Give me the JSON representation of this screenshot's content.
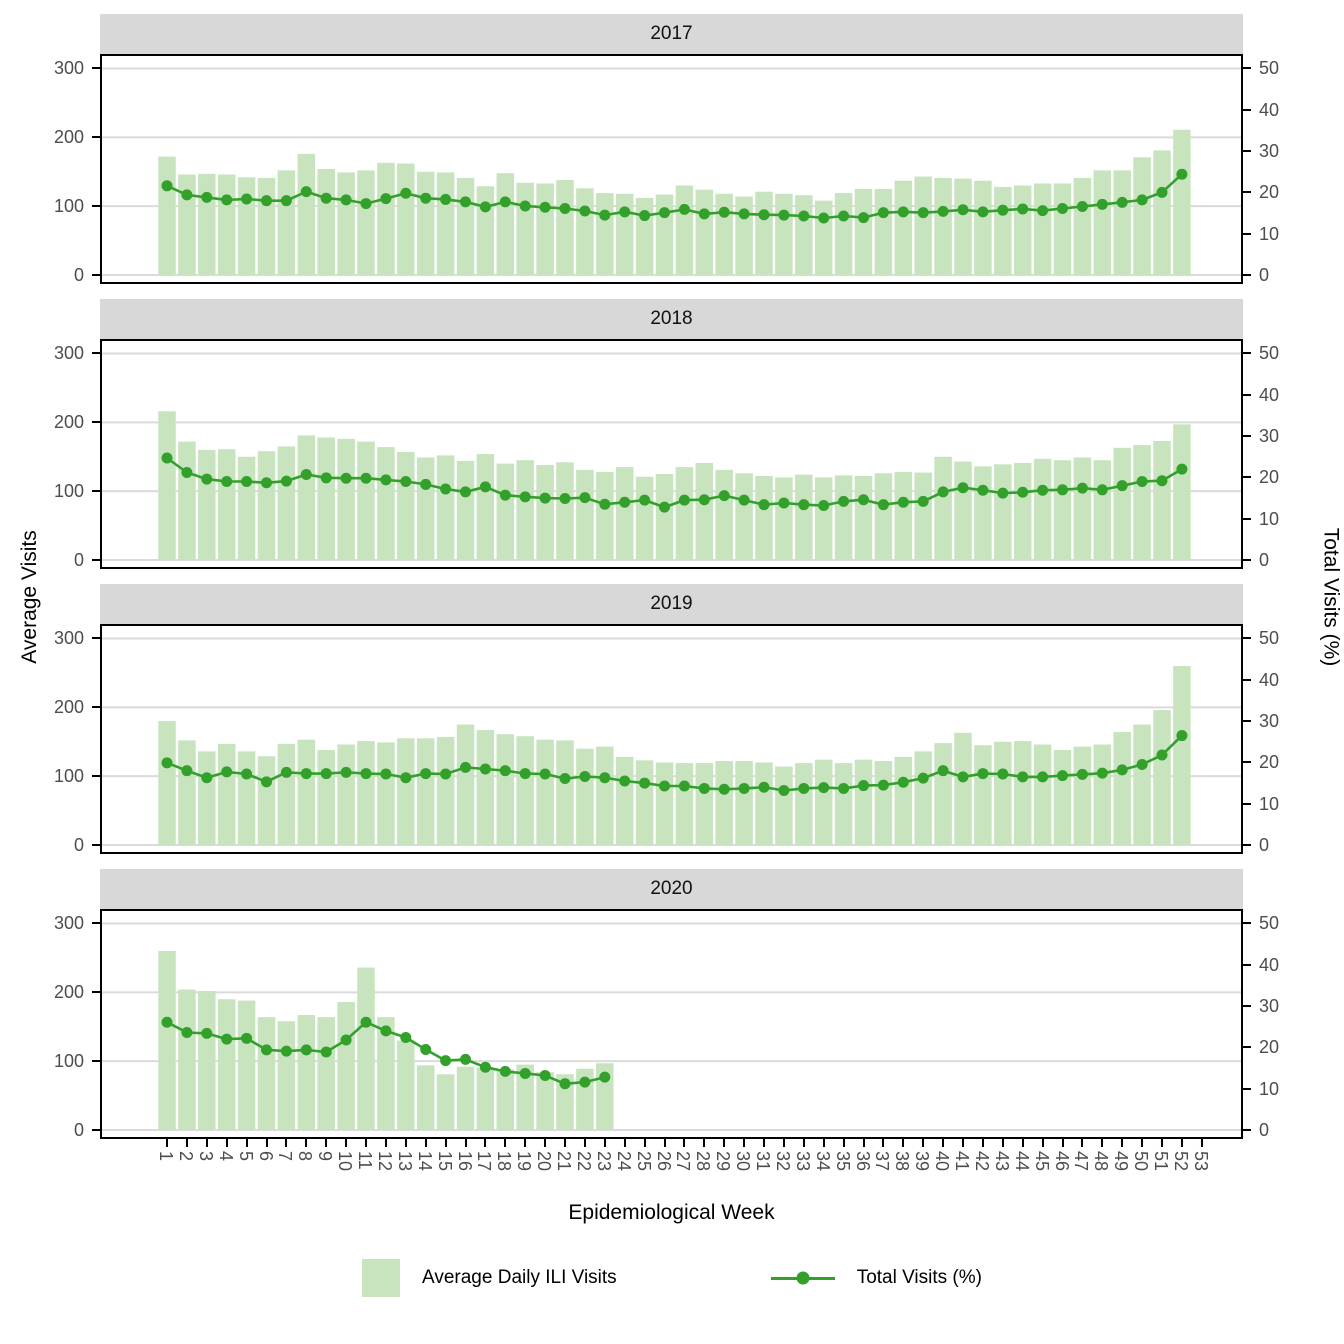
{
  "figure": {
    "left_axis_title": "Average Visits",
    "right_axis_title": "Total Visits (%)",
    "x_axis_title": "Epidemiological Week",
    "left_ticks": [
      300,
      200,
      100,
      0
    ],
    "right_ticks": [
      50,
      40,
      30,
      20,
      10,
      0
    ],
    "x_tick_labels": [
      "1",
      "2",
      "3",
      "4",
      "5",
      "6",
      "7",
      "8",
      "9",
      "10",
      "11",
      "12",
      "13",
      "14",
      "15",
      "16",
      "17",
      "18",
      "19",
      "20",
      "21",
      "22",
      "23",
      "24",
      "25",
      "26",
      "27",
      "28",
      "29",
      "30",
      "31",
      "32",
      "33",
      "34",
      "35",
      "36",
      "37",
      "38",
      "39",
      "40",
      "41",
      "42",
      "43",
      "44",
      "45",
      "46",
      "47",
      "48",
      "49",
      "50",
      "51",
      "52",
      "53"
    ]
  },
  "legend": {
    "items": [
      {
        "label": "Average Daily ILI Visits",
        "type": "fill"
      },
      {
        "label": "Total Visits (%)",
        "type": "line"
      }
    ]
  },
  "colors": {
    "bar_fill": "#C7E4BE",
    "line": "#33A02C",
    "strip_bg": "#D8D8D8",
    "grid": "#DBDBDB",
    "axis_text": "#4D4D4D",
    "panel_border": "#000000"
  },
  "chart_data": [
    {
      "type": "bar+line",
      "title": "2017",
      "xlabel": "Epidemiological Week",
      "ylabel_left": "Average Visits",
      "ylabel_right": "Total Visits (%)",
      "ylim_left": [
        0,
        300
      ],
      "ylim_right": [
        0,
        50
      ],
      "x": [
        1,
        2,
        3,
        4,
        5,
        6,
        7,
        8,
        9,
        10,
        11,
        12,
        13,
        14,
        15,
        16,
        17,
        18,
        19,
        20,
        21,
        22,
        23,
        24,
        25,
        26,
        27,
        28,
        29,
        30,
        31,
        32,
        33,
        34,
        35,
        36,
        37,
        38,
        39,
        40,
        41,
        42,
        43,
        44,
        45,
        46,
        47,
        48,
        49,
        50,
        51,
        52
      ],
      "series": [
        {
          "name": "Average Daily ILI Visits",
          "axis": "left",
          "values": [
            172,
            146,
            147,
            146,
            142,
            141,
            152,
            176,
            154,
            149,
            152,
            163,
            162,
            150,
            149,
            141,
            129,
            148,
            134,
            133,
            138,
            126,
            119,
            118,
            112,
            117,
            130,
            124,
            118,
            114,
            121,
            118,
            116,
            108,
            119,
            125,
            125,
            137,
            143,
            141,
            140,
            137,
            128,
            130,
            133,
            133,
            141,
            152,
            152,
            171,
            181,
            211
          ]
        },
        {
          "name": "Total Visits (%)",
          "axis": "right",
          "values": [
            21.6,
            19.4,
            18.8,
            18.2,
            18.4,
            18.0,
            18.0,
            20.2,
            18.6,
            18.2,
            17.3,
            18.5,
            19.8,
            18.6,
            18.3,
            17.7,
            16.5,
            17.7,
            16.7,
            16.4,
            16.1,
            15.5,
            14.5,
            15.3,
            14.4,
            15.1,
            15.9,
            14.8,
            15.2,
            14.8,
            14.6,
            14.5,
            14.3,
            13.8,
            14.3,
            13.9,
            15.1,
            15.3,
            15.1,
            15.4,
            15.8,
            15.3,
            15.7,
            16.0,
            15.6,
            16.1,
            16.6,
            17.1,
            17.6,
            18.2,
            20.0,
            24.4
          ]
        }
      ]
    },
    {
      "type": "bar+line",
      "title": "2018",
      "xlabel": "Epidemiological Week",
      "ylabel_left": "Average Visits",
      "ylabel_right": "Total Visits (%)",
      "ylim_left": [
        0,
        300
      ],
      "ylim_right": [
        0,
        50
      ],
      "x": [
        1,
        2,
        3,
        4,
        5,
        6,
        7,
        8,
        9,
        10,
        11,
        12,
        13,
        14,
        15,
        16,
        17,
        18,
        19,
        20,
        21,
        22,
        23,
        24,
        25,
        26,
        27,
        28,
        29,
        30,
        31,
        32,
        33,
        34,
        35,
        36,
        37,
        38,
        39,
        40,
        41,
        42,
        43,
        44,
        45,
        46,
        47,
        48,
        49,
        50,
        51,
        52
      ],
      "series": [
        {
          "name": "Average Daily ILI Visits",
          "axis": "left",
          "values": [
            216,
            172,
            160,
            161,
            150,
            158,
            165,
            181,
            178,
            176,
            172,
            164,
            157,
            149,
            152,
            144,
            154,
            140,
            145,
            138,
            142,
            131,
            128,
            135,
            121,
            125,
            135,
            141,
            131,
            126,
            122,
            120,
            124,
            120,
            123,
            122,
            126,
            128,
            127,
            150,
            143,
            136,
            139,
            141,
            147,
            145,
            149,
            145,
            163,
            167,
            173,
            197
          ]
        },
        {
          "name": "Total Visits (%)",
          "axis": "right",
          "values": [
            24.7,
            21.2,
            19.6,
            19.0,
            19.0,
            18.7,
            19.1,
            20.7,
            19.9,
            19.8,
            19.8,
            19.4,
            19.0,
            18.3,
            17.2,
            16.5,
            17.7,
            15.7,
            15.3,
            15.0,
            14.9,
            15.1,
            13.5,
            14.0,
            14.5,
            12.8,
            14.5,
            14.6,
            15.6,
            14.5,
            13.4,
            13.8,
            13.4,
            13.2,
            14.2,
            14.6,
            13.4,
            14.0,
            14.2,
            16.5,
            17.5,
            16.9,
            16.2,
            16.4,
            16.9,
            17.0,
            17.4,
            17.0,
            18.0,
            19.0,
            19.2,
            22.0
          ]
        }
      ]
    },
    {
      "type": "bar+line",
      "title": "2019",
      "xlabel": "Epidemiological Week",
      "ylabel_left": "Average Visits",
      "ylabel_right": "Total Visits (%)",
      "ylim_left": [
        0,
        300
      ],
      "ylim_right": [
        0,
        50
      ],
      "x": [
        1,
        2,
        3,
        4,
        5,
        6,
        7,
        8,
        9,
        10,
        11,
        12,
        13,
        14,
        15,
        16,
        17,
        18,
        19,
        20,
        21,
        22,
        23,
        24,
        25,
        26,
        27,
        28,
        29,
        30,
        31,
        32,
        33,
        34,
        35,
        36,
        37,
        38,
        39,
        40,
        41,
        42,
        43,
        44,
        45,
        46,
        47,
        48,
        49,
        50,
        51,
        52
      ],
      "series": [
        {
          "name": "Average Daily ILI Visits",
          "axis": "left",
          "values": [
            180,
            152,
            136,
            147,
            136,
            129,
            147,
            153,
            138,
            146,
            151,
            149,
            155,
            155,
            157,
            175,
            167,
            161,
            158,
            153,
            152,
            140,
            143,
            128,
            123,
            120,
            119,
            119,
            122,
            122,
            120,
            114,
            119,
            124,
            119,
            124,
            122,
            128,
            136,
            148,
            163,
            145,
            150,
            151,
            146,
            138,
            143,
            146,
            164,
            175,
            196,
            260
          ]
        },
        {
          "name": "Total Visits (%)",
          "axis": "right",
          "values": [
            19.9,
            18.0,
            16.3,
            17.7,
            17.2,
            15.3,
            17.6,
            17.3,
            17.3,
            17.6,
            17.3,
            17.2,
            16.3,
            17.3,
            17.2,
            18.8,
            18.4,
            18.0,
            17.3,
            17.2,
            16.1,
            16.6,
            16.3,
            15.5,
            15.0,
            14.3,
            14.3,
            13.7,
            13.5,
            13.7,
            14.0,
            13.2,
            13.7,
            13.9,
            13.7,
            14.4,
            14.5,
            15.2,
            16.2,
            18.0,
            16.5,
            17.3,
            17.2,
            16.5,
            16.5,
            16.8,
            17.1,
            17.4,
            18.2,
            19.5,
            21.8,
            26.5
          ]
        }
      ]
    },
    {
      "type": "bar+line",
      "title": "2020",
      "xlabel": "Epidemiological Week",
      "ylabel_left": "Average Visits",
      "ylabel_right": "Total Visits (%)",
      "ylim_left": [
        0,
        300
      ],
      "ylim_right": [
        0,
        50
      ],
      "x": [
        1,
        2,
        3,
        4,
        5,
        6,
        7,
        8,
        9,
        10,
        11,
        12,
        13,
        14,
        15,
        16,
        17,
        18,
        19,
        20,
        21,
        22,
        23
      ],
      "series": [
        {
          "name": "Average Daily ILI Visits",
          "axis": "left",
          "values": [
            260,
            204,
            202,
            190,
            188,
            164,
            158,
            167,
            164,
            186,
            236,
            164,
            130,
            94,
            81,
            92,
            91,
            88,
            95,
            84,
            81,
            89,
            97
          ]
        },
        {
          "name": "Total Visits (%)",
          "axis": "right",
          "values": [
            26.1,
            23.6,
            23.4,
            22.0,
            22.2,
            19.4,
            19.1,
            19.4,
            18.9,
            21.8,
            26.1,
            24.0,
            22.4,
            19.5,
            16.8,
            17.1,
            15.2,
            14.2,
            13.7,
            13.2,
            11.2,
            11.6,
            12.8
          ]
        }
      ]
    }
  ]
}
